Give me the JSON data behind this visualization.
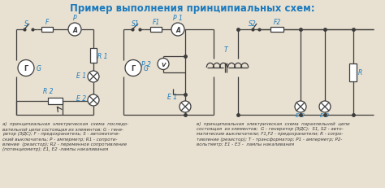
{
  "title": "Пример выполнения принципиальных схем:",
  "title_color": "#1a7abf",
  "bg_color": "#e8e0d0",
  "circuit_color": "#3c3c3c",
  "label_color": "#1a7abf",
  "figsize": [
    4.74,
    2.32
  ],
  "dpi": 100,
  "caption_left_plain": "а)  принципиальная  электрическая  схема  последо-\nвательной цепи состоящая из элементов: G - гене-\nратор (ЭДС); F - предохранитель; S - автоматиче-\nский выключатель; P - амперметр; R1 - сопроти-\nвление  (резистор); R2 - переменное сопротивление\n(потенциометр); E1, E2 -лампы накаливания",
  "caption_right_plain": "в)  принципиальная  электрическая  схема  параллельной  цепи\nсостоящая  из элементов;  G - генератор (ЭДС);  S1, S2 - авто-\nматические выключатели; F1,F2 - предохранители; R - сопро-\nтивление (резистор); T - трансформатор; P1 - амперметр; P2-\nвольтметр; E1 - E3 -  лампы накаливания"
}
